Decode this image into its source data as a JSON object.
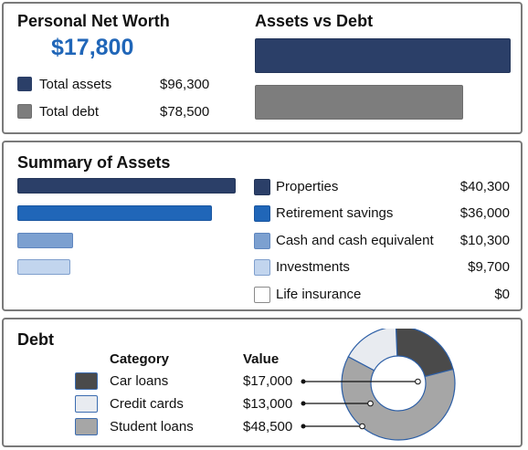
{
  "net_worth": {
    "title": "Personal Net Worth",
    "value": "$17,800",
    "rows": [
      {
        "label": "Total assets",
        "value": "$96,300",
        "color": "#2b3f68"
      },
      {
        "label": "Total debt",
        "value": "$78,500",
        "color": "#7d7d7d"
      }
    ]
  },
  "assets_vs_debt": {
    "title": "Assets vs Debt",
    "chart_data": {
      "type": "bar",
      "title": "Assets vs Debt",
      "orientation": "horizontal",
      "categories": [
        "Total assets",
        "Total debt"
      ],
      "values": [
        96300,
        78500
      ],
      "colors": [
        "#2b3f68",
        "#7d7d7d"
      ]
    }
  },
  "assets": {
    "title": "Summary of Assets",
    "items": [
      {
        "label": "Properties",
        "value": "$40,300",
        "amount": 40300,
        "color": "#2b3f68"
      },
      {
        "label": "Retirement savings",
        "value": "$36,000",
        "amount": 36000,
        "color": "#2066b8"
      },
      {
        "label": "Cash and cash equivalent",
        "value": "$10,300",
        "amount": 10300,
        "color": "#7ca0d0"
      },
      {
        "label": "Investments",
        "value": "$9,700",
        "amount": 9700,
        "color": "#c2d5ee"
      },
      {
        "label": "Life insurance",
        "value": "$0",
        "amount": 0,
        "color": "#ffffff"
      }
    ]
  },
  "debt": {
    "title": "Debt",
    "col_category": "Category",
    "col_value": "Value",
    "items": [
      {
        "label": "Car loans",
        "value": "$17,000",
        "amount": 17000,
        "color": "#4a4a4a"
      },
      {
        "label": "Credit cards",
        "value": "$13,000",
        "amount": 13000,
        "color": "#e8ebf0"
      },
      {
        "label": "Student loans",
        "value": "$48,500",
        "amount": 48500,
        "color": "#a6a6a6"
      }
    ]
  }
}
